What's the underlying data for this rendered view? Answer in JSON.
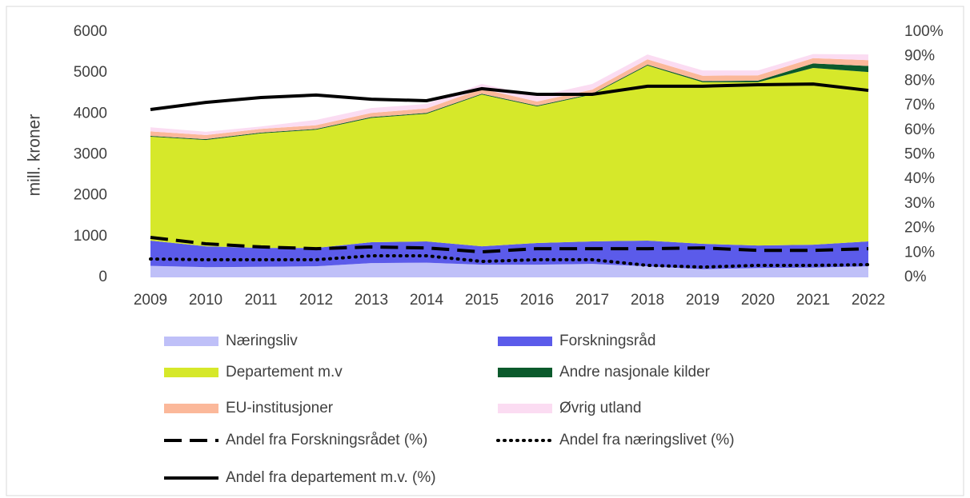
{
  "chart_data": {
    "type": "area",
    "y_label": "mill. kroner",
    "x": [
      "2009",
      "2010",
      "2011",
      "2012",
      "2013",
      "2014",
      "2015",
      "2016",
      "2017",
      "2018",
      "2019",
      "2020",
      "2021",
      "2022"
    ],
    "ylim": [
      0,
      6000
    ],
    "yticks": [
      0,
      1000,
      2000,
      3000,
      4000,
      5000,
      6000
    ],
    "y2lim": [
      0,
      100
    ],
    "y2ticks": [
      {
        "value": 0,
        "label": "0%"
      },
      {
        "value": 10,
        "label": "10%"
      },
      {
        "value": 20,
        "label": "20%"
      },
      {
        "value": 30,
        "label": "30%"
      },
      {
        "value": 40,
        "label": "40%"
      },
      {
        "value": 50,
        "label": "50%"
      },
      {
        "value": 60,
        "label": "60%"
      },
      {
        "value": 70,
        "label": "70%"
      },
      {
        "value": 80,
        "label": "80%"
      },
      {
        "value": 90,
        "label": "90%"
      },
      {
        "value": 100,
        "label": "100%"
      }
    ],
    "grid": false,
    "series": [
      {
        "name": "Næringsliv",
        "color": "#bfc0f8",
        "kind": "area",
        "values": [
          280,
          250,
          260,
          270,
          350,
          360,
          310,
          310,
          330,
          270,
          200,
          230,
          240,
          270
        ]
      },
      {
        "name": "Forskningsråd",
        "color": "#5b5bea",
        "kind": "area",
        "values": [
          620,
          510,
          460,
          450,
          510,
          520,
          450,
          530,
          550,
          630,
          620,
          550,
          560,
          610
        ]
      },
      {
        "name": "Departement m.v",
        "color": "#d6e82a",
        "kind": "area",
        "values": [
          2540,
          2600,
          2800,
          2890,
          3040,
          3120,
          3710,
          3340,
          3590,
          4280,
          3950,
          3990,
          4320,
          4140
        ]
      },
      {
        "name": "Andre nasjonale kilder",
        "color": "#0b5a2c",
        "kind": "area",
        "values": [
          20,
          20,
          20,
          20,
          20,
          20,
          20,
          20,
          20,
          20,
          30,
          40,
          110,
          150
        ]
      },
      {
        "name": "EU-institusjoner",
        "color": "#fbb89a",
        "kind": "area",
        "values": [
          110,
          100,
          90,
          90,
          100,
          110,
          120,
          100,
          100,
          130,
          130,
          130,
          130,
          140
        ]
      },
      {
        "name": "Øvrig utland",
        "color": "#fbdcf2",
        "kind": "area",
        "values": [
          100,
          80,
          60,
          130,
          120,
          110,
          120,
          130,
          140,
          120,
          130,
          120,
          100,
          140
        ]
      },
      {
        "name": "Andel fra Forskningsrådet (%)",
        "color": "#000000",
        "kind": "line",
        "dash": "dashed",
        "axis": "y2",
        "values": [
          16.3,
          13.7,
          12.4,
          11.7,
          12.4,
          12,
          10.4,
          11.7,
          11.7,
          11.7,
          12,
          11,
          11,
          11.7
        ]
      },
      {
        "name": "Andel fra næringslivet (%)",
        "color": "#000000",
        "kind": "line",
        "dash": "dotted",
        "axis": "y2",
        "values": [
          7.5,
          7.2,
          7.2,
          7.2,
          8.8,
          8.8,
          6.5,
          7.2,
          7.2,
          4.9,
          4.2,
          4.9,
          4.9,
          5.2
        ]
      },
      {
        "name": "Andel fra departement m.v. (%)",
        "color": "#000000",
        "kind": "line",
        "dash": "solid",
        "axis": "y2",
        "values": [
          68.4,
          71.3,
          73.3,
          74.3,
          72.6,
          72,
          76.9,
          74.6,
          74.6,
          77.9,
          77.9,
          78.5,
          78.8,
          76.2
        ]
      }
    ]
  }
}
